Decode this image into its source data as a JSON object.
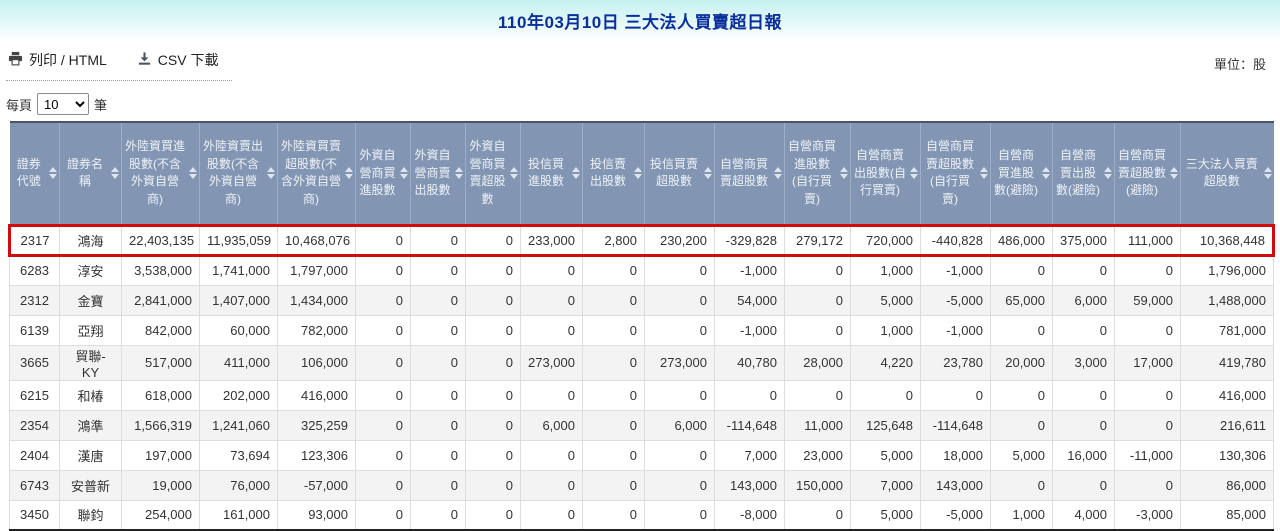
{
  "title": "110年03月10日 三大法人買賣超日報",
  "toolbar": {
    "print_label": "列印 / HTML",
    "csv_label": "CSV 下載",
    "unit_label": "單位：股"
  },
  "pagination": {
    "per_page_prefix": "每頁",
    "per_page_value": "10",
    "per_page_suffix": "筆"
  },
  "table": {
    "columns": [
      "證券代號",
      "證券名稱",
      "外陸資買進股數(不含外資自營商)",
      "外陸資賣出股數(不含外資自營商)",
      "外陸資買賣超股數(不含外資自營商)",
      "外資自營商買進股數",
      "外資自營商賣出股數",
      "外資自營商買賣超股數",
      "投信買進股數",
      "投信賣出股數",
      "投信買賣超股數",
      "自營商買賣超股數",
      "自營商買進股數(自行買賣)",
      "自營商賣出股數(自行買賣)",
      "自營商買賣超股數(自行買賣)",
      "自營商買進股數(避險)",
      "自營商賣出股數(避險)",
      "自營商買賣超股數(避險)",
      "三大法人買賣超股數"
    ],
    "highlighted_row_index": 0,
    "rows": [
      [
        "2317",
        "鴻海",
        "22,403,135",
        "11,935,059",
        "10,468,076",
        "0",
        "0",
        "0",
        "233,000",
        "2,800",
        "230,200",
        "-329,828",
        "279,172",
        "720,000",
        "-440,828",
        "486,000",
        "375,000",
        "111,000",
        "10,368,448"
      ],
      [
        "6283",
        "淳安",
        "3,538,000",
        "1,741,000",
        "1,797,000",
        "0",
        "0",
        "0",
        "0",
        "0",
        "0",
        "-1,000",
        "0",
        "1,000",
        "-1,000",
        "0",
        "0",
        "0",
        "1,796,000"
      ],
      [
        "2312",
        "金寶",
        "2,841,000",
        "1,407,000",
        "1,434,000",
        "0",
        "0",
        "0",
        "0",
        "0",
        "0",
        "54,000",
        "0",
        "5,000",
        "-5,000",
        "65,000",
        "6,000",
        "59,000",
        "1,488,000"
      ],
      [
        "6139",
        "亞翔",
        "842,000",
        "60,000",
        "782,000",
        "0",
        "0",
        "0",
        "0",
        "0",
        "0",
        "-1,000",
        "0",
        "1,000",
        "-1,000",
        "0",
        "0",
        "0",
        "781,000"
      ],
      [
        "3665",
        "貿聯-KY",
        "517,000",
        "411,000",
        "106,000",
        "0",
        "0",
        "0",
        "273,000",
        "0",
        "273,000",
        "40,780",
        "28,000",
        "4,220",
        "23,780",
        "20,000",
        "3,000",
        "17,000",
        "419,780"
      ],
      [
        "6215",
        "和椿",
        "618,000",
        "202,000",
        "416,000",
        "0",
        "0",
        "0",
        "0",
        "0",
        "0",
        "0",
        "0",
        "0",
        "0",
        "0",
        "0",
        "0",
        "416,000"
      ],
      [
        "2354",
        "鴻準",
        "1,566,319",
        "1,241,060",
        "325,259",
        "0",
        "0",
        "0",
        "6,000",
        "0",
        "6,000",
        "-114,648",
        "11,000",
        "125,648",
        "-114,648",
        "0",
        "0",
        "0",
        "216,611"
      ],
      [
        "2404",
        "漢唐",
        "197,000",
        "73,694",
        "123,306",
        "0",
        "0",
        "0",
        "0",
        "0",
        "0",
        "7,000",
        "23,000",
        "5,000",
        "18,000",
        "5,000",
        "16,000",
        "-11,000",
        "130,306"
      ],
      [
        "6743",
        "安普新",
        "19,000",
        "76,000",
        "-57,000",
        "0",
        "0",
        "0",
        "0",
        "0",
        "0",
        "143,000",
        "150,000",
        "7,000",
        "143,000",
        "0",
        "0",
        "0",
        "86,000"
      ],
      [
        "3450",
        "聯鈞",
        "254,000",
        "161,000",
        "93,000",
        "0",
        "0",
        "0",
        "0",
        "0",
        "0",
        "-8,000",
        "0",
        "5,000",
        "-5,000",
        "1,000",
        "4,000",
        "-3,000",
        "85,000"
      ]
    ]
  },
  "colors": {
    "title_blue": "#0a2f9c",
    "banner_cyan": "#c6f1f1",
    "header_bg": "#8296b4",
    "highlight_red": "#d10b0b",
    "stripe_gray": "#f3f3f3"
  }
}
